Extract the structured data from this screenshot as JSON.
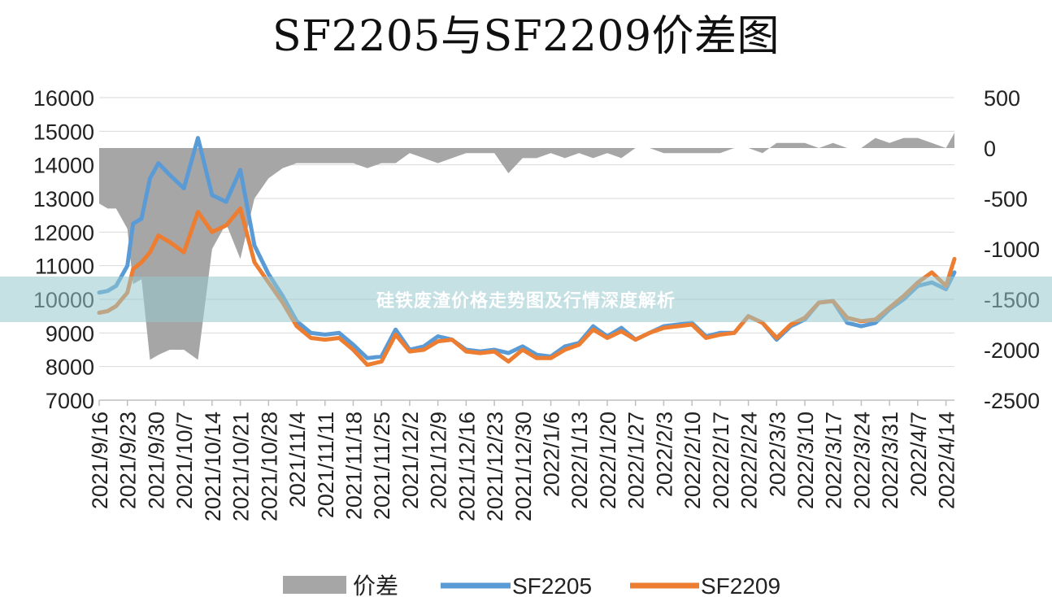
{
  "title": "SF2205与SF2209价差图",
  "overlay_text": "硅铁废渣价格走势图及行情深度解析",
  "colors": {
    "spread": "#a6a6a6",
    "sf2205": "#5b9bd5",
    "sf2209": "#ed7d31",
    "grid": "#d9d9d9"
  },
  "chart_data": {
    "type": "line",
    "title": "SF2205与SF2209价差图",
    "left_axis": {
      "ylim": [
        7000,
        16000
      ],
      "ticks": [
        7000,
        8000,
        9000,
        10000,
        11000,
        12000,
        13000,
        14000,
        15000,
        16000
      ]
    },
    "right_axis": {
      "ylim": [
        -2500,
        500
      ],
      "ticks": [
        -2500,
        -2000,
        -1500,
        -1000,
        -500,
        0,
        500
      ]
    },
    "x_tick_labels": [
      "2021/9/16",
      "2021/9/23",
      "2021/9/30",
      "2021/10/7",
      "2021/10/14",
      "2021/10/21",
      "2021/10/28",
      "2021/11/4",
      "2021/11/11",
      "2021/11/18",
      "2021/11/25",
      "2021/12/2",
      "2021/12/9",
      "2021/12/16",
      "2021/12/23",
      "2021/12/30",
      "2022/1/6",
      "2022/1/13",
      "2022/1/20",
      "2022/1/27",
      "2022/2/3",
      "2022/2/10",
      "2022/2/17",
      "2022/2/24",
      "2022/3/3",
      "2022/3/10",
      "2022/3/17",
      "2022/3/24",
      "2022/3/31",
      "2022/4/7",
      "2022/4/14"
    ],
    "grid": true,
    "legend_position": "bottom",
    "legend": [
      "价差",
      "SF2205",
      "SF2209"
    ],
    "x": [
      0,
      0.3,
      0.6,
      1,
      1.2,
      1.5,
      1.8,
      2.1,
      2.5,
      3,
      3.5,
      4,
      4.5,
      5,
      5.5,
      6,
      6.5,
      7,
      7.5,
      8,
      8.5,
      9,
      9.5,
      10,
      10.5,
      11,
      11.5,
      12,
      12.5,
      13,
      13.5,
      14,
      14.5,
      15,
      15.5,
      16,
      16.5,
      17,
      17.5,
      18,
      18.5,
      19,
      19.5,
      20,
      20.5,
      21,
      21.5,
      22,
      22.5,
      23,
      23.5,
      24,
      24.5,
      25,
      25.5,
      26,
      26.5,
      27,
      27.5,
      28,
      28.5,
      29,
      29.5,
      30,
      30.3
    ],
    "series": [
      {
        "name": "SF2205",
        "axis": "left",
        "values": [
          10200,
          10250,
          10400,
          11000,
          12250,
          12400,
          13600,
          14050,
          13700,
          13300,
          14800,
          13100,
          12900,
          13850,
          11600,
          10750,
          10100,
          9350,
          9000,
          8950,
          9000,
          8650,
          8250,
          8300,
          9100,
          8500,
          8600,
          8900,
          8800,
          8500,
          8450,
          8500,
          8400,
          8600,
          8350,
          8300,
          8600,
          8700,
          9200,
          8900,
          9150,
          8800,
          9000,
          9200,
          9250,
          9300,
          8900,
          9000,
          9000,
          9500,
          9300,
          8800,
          9200,
          9400,
          9900,
          9950,
          9300,
          9200,
          9300,
          9700,
          10000,
          10400,
          10500,
          10300,
          10800
        ]
      },
      {
        "name": "SF2209",
        "axis": "left",
        "values": [
          9600,
          9650,
          9800,
          10200,
          10900,
          11100,
          11400,
          11900,
          11700,
          11400,
          12600,
          12000,
          12200,
          12700,
          11100,
          10500,
          9900,
          9200,
          8850,
          8800,
          8850,
          8500,
          8050,
          8150,
          8950,
          8450,
          8500,
          8750,
          8800,
          8450,
          8400,
          8450,
          8150,
          8500,
          8250,
          8250,
          8500,
          8650,
          9100,
          8850,
          9050,
          8800,
          9000,
          9150,
          9200,
          9250,
          8850,
          8950,
          9000,
          9500,
          9300,
          8850,
          9250,
          9450,
          9900,
          9950,
          9450,
          9350,
          9400,
          9750,
          10100,
          10500,
          10800,
          10400,
          11200
        ]
      },
      {
        "name": "价差",
        "axis": "right",
        "values": [
          -550,
          -600,
          -600,
          -800,
          -1350,
          -1300,
          -2100,
          -2050,
          -2000,
          -2000,
          -2100,
          -1000,
          -750,
          -1100,
          -500,
          -300,
          -200,
          -150,
          -150,
          -150,
          -150,
          -150,
          -200,
          -150,
          -150,
          -50,
          -100,
          -150,
          -100,
          -50,
          -50,
          -50,
          -250,
          -100,
          -100,
          -50,
          -100,
          -50,
          -100,
          -50,
          -100,
          0,
          0,
          -50,
          -50,
          -50,
          -50,
          -50,
          0,
          0,
          -50,
          50,
          50,
          50,
          0,
          50,
          0,
          0,
          100,
          50,
          100,
          100,
          50,
          0,
          150
        ]
      }
    ]
  },
  "legend": {
    "spread_label": "价差",
    "sf2205_label": "SF2205",
    "sf2209_label": "SF2209"
  }
}
